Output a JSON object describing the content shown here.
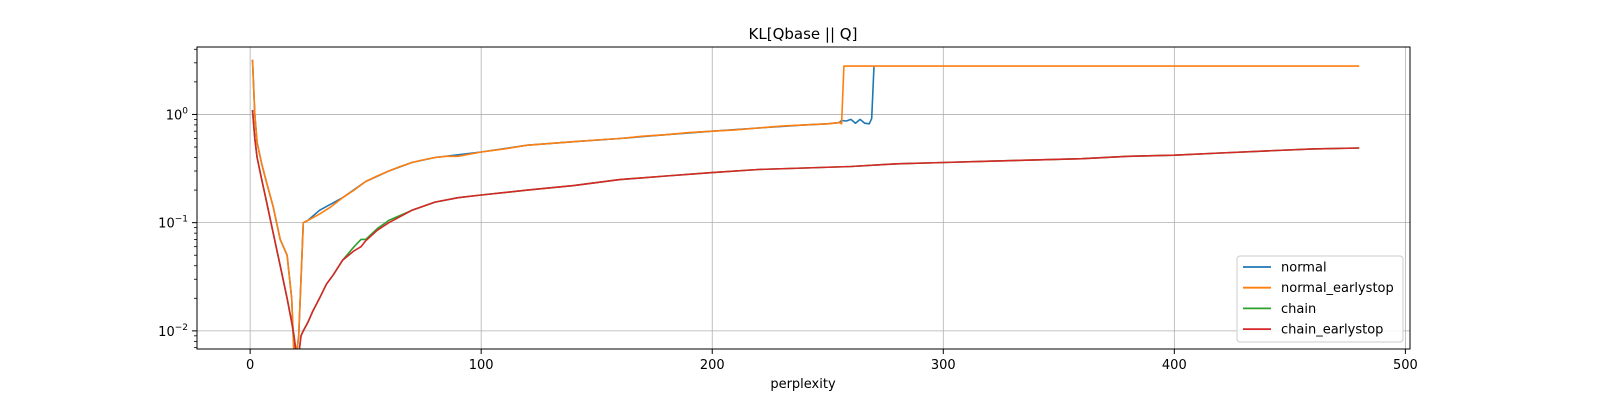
{
  "chart_data": {
    "type": "line",
    "title": "KL[Qbase || Q]",
    "xlabel": "perplexity",
    "ylabel": "",
    "xlim": [
      -23,
      502
    ],
    "ylim": [
      0.0068,
      4.2
    ],
    "yscale": "log",
    "grid": true,
    "legend_position": "lower right",
    "x_ticks": [
      0,
      100,
      200,
      300,
      400,
      500
    ],
    "x_tick_labels": [
      "0",
      "100",
      "200",
      "300",
      "400",
      "500"
    ],
    "y_ticks": [
      0.01,
      0.1,
      1
    ],
    "y_tick_labels": [
      {
        "base": "10",
        "exp": "−2"
      },
      {
        "base": "10",
        "exp": "−1"
      },
      {
        "base": "10",
        "exp": "0"
      }
    ],
    "series": [
      {
        "name": "normal",
        "color": "#1f77b4",
        "x": [
          1,
          2,
          3,
          5,
          7,
          10,
          13,
          16,
          18,
          19,
          20,
          21,
          22,
          23,
          25,
          30,
          40,
          50,
          60,
          70,
          80,
          100,
          120,
          140,
          160,
          180,
          200,
          220,
          240,
          250,
          255,
          256,
          258,
          260,
          262,
          264,
          266,
          268,
          269,
          270
        ],
        "y": [
          3.2,
          1.0,
          0.55,
          0.35,
          0.24,
          0.14,
          0.07,
          0.05,
          0.02,
          0.006,
          0.006,
          0.009,
          0.03,
          0.1,
          0.105,
          0.13,
          0.17,
          0.24,
          0.3,
          0.36,
          0.4,
          0.45,
          0.52,
          0.56,
          0.6,
          0.65,
          0.7,
          0.75,
          0.8,
          0.82,
          0.84,
          0.88,
          0.87,
          0.9,
          0.83,
          0.9,
          0.83,
          0.82,
          0.92,
          2.8
        ]
      },
      {
        "name": "normal_earlystop",
        "color": "#ff7f0e",
        "x": [
          1,
          2,
          3,
          5,
          7,
          10,
          13,
          16,
          18,
          19,
          20,
          21,
          22,
          23,
          25,
          30,
          35,
          40,
          45,
          50,
          55,
          60,
          65,
          70,
          75,
          80,
          85,
          90,
          100,
          110,
          120,
          130,
          140,
          150,
          160,
          170,
          180,
          190,
          200,
          210,
          220,
          230,
          240,
          250,
          255,
          256,
          257,
          258,
          480
        ],
        "y": [
          3.2,
          1.0,
          0.55,
          0.35,
          0.24,
          0.14,
          0.07,
          0.05,
          0.02,
          0.006,
          0.006,
          0.009,
          0.03,
          0.1,
          0.105,
          0.12,
          0.14,
          0.17,
          0.2,
          0.24,
          0.27,
          0.3,
          0.33,
          0.36,
          0.38,
          0.4,
          0.41,
          0.41,
          0.45,
          0.48,
          0.52,
          0.54,
          0.56,
          0.58,
          0.6,
          0.63,
          0.65,
          0.68,
          0.7,
          0.72,
          0.75,
          0.78,
          0.8,
          0.82,
          0.84,
          0.82,
          2.8,
          2.8,
          2.8
        ]
      },
      {
        "name": "chain",
        "color": "#2ca02c",
        "x": [
          1,
          2,
          3,
          5,
          7,
          10,
          13,
          16,
          18,
          19,
          20,
          21,
          22,
          23,
          25,
          27,
          30,
          33,
          36,
          40,
          45,
          48,
          50,
          55,
          60,
          70,
          80,
          90,
          100,
          120,
          140,
          160,
          180,
          200,
          220,
          240,
          260,
          280,
          300,
          320,
          340,
          360,
          380,
          400,
          420,
          440,
          460,
          480
        ],
        "y": [
          1.1,
          0.6,
          0.4,
          0.25,
          0.16,
          0.08,
          0.04,
          0.02,
          0.012,
          0.009,
          0.006,
          0.006,
          0.009,
          0.01,
          0.012,
          0.015,
          0.02,
          0.027,
          0.033,
          0.045,
          0.06,
          0.07,
          0.07,
          0.088,
          0.105,
          0.13,
          0.155,
          0.17,
          0.18,
          0.2,
          0.22,
          0.25,
          0.27,
          0.29,
          0.31,
          0.32,
          0.33,
          0.35,
          0.36,
          0.37,
          0.38,
          0.39,
          0.41,
          0.42,
          0.44,
          0.46,
          0.48,
          0.49
        ]
      },
      {
        "name": "chain_earlystop",
        "color": "#d62728",
        "x": [
          1,
          2,
          3,
          5,
          7,
          10,
          13,
          16,
          18,
          19,
          20,
          21,
          22,
          23,
          25,
          27,
          30,
          33,
          36,
          40,
          45,
          48,
          50,
          55,
          60,
          70,
          80,
          90,
          100,
          120,
          140,
          160,
          180,
          200,
          220,
          240,
          260,
          280,
          300,
          320,
          340,
          360,
          380,
          400,
          420,
          440,
          460,
          480
        ],
        "y": [
          1.1,
          0.6,
          0.4,
          0.25,
          0.16,
          0.08,
          0.04,
          0.02,
          0.012,
          0.009,
          0.006,
          0.006,
          0.009,
          0.01,
          0.012,
          0.015,
          0.02,
          0.027,
          0.033,
          0.045,
          0.055,
          0.06,
          0.068,
          0.085,
          0.1,
          0.13,
          0.155,
          0.17,
          0.18,
          0.2,
          0.22,
          0.25,
          0.27,
          0.29,
          0.31,
          0.32,
          0.33,
          0.35,
          0.36,
          0.37,
          0.38,
          0.39,
          0.41,
          0.42,
          0.44,
          0.46,
          0.48,
          0.49
        ]
      }
    ]
  }
}
